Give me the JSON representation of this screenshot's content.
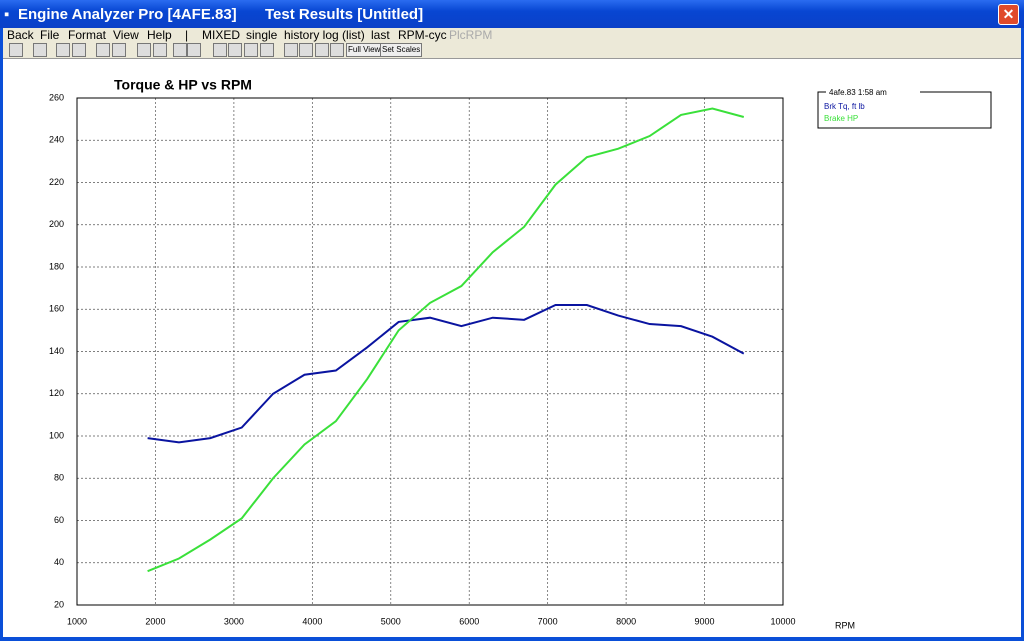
{
  "window": {
    "title": "Engine Analyzer Pro [4AFE.83]",
    "doc_title": "Test Results [Untitled]"
  },
  "menu": [
    "Back",
    "File",
    "Format",
    "View",
    "Help",
    "|",
    "MIXED",
    "single",
    "history log (list)",
    "last",
    "RPM-cyc",
    "PlcRPM"
  ],
  "toolbar": [
    "Full View",
    "Set Scales"
  ],
  "chart_data": {
    "type": "line",
    "title": "Torque & HP vs RPM",
    "x_label": "RPM",
    "legend_title": "4afe.83 1:58 am",
    "x": [
      1900,
      2300,
      2700,
      3100,
      3500,
      3900,
      4300,
      4700,
      5100,
      5500,
      5900,
      6300,
      6700,
      7100,
      7500,
      7900,
      8300,
      8700,
      9100,
      9500
    ],
    "series": [
      {
        "name": "Brk Tq, ft lb",
        "color": "#0a14a0",
        "values": [
          99,
          97,
          99,
          104,
          120,
          129,
          131,
          142,
          154,
          156,
          152,
          156,
          155,
          162,
          162,
          157,
          153,
          152,
          147,
          139
        ]
      },
      {
        "name": "Brake HP",
        "color": "#3ae03a",
        "values": [
          36,
          42,
          51,
          61,
          80,
          96,
          107,
          127,
          150,
          163,
          171,
          187,
          199,
          219,
          232,
          236,
          242,
          252,
          255,
          251
        ]
      }
    ],
    "xlim": [
      1000,
      10000
    ],
    "xticks": [
      1000,
      2000,
      3000,
      4000,
      5000,
      6000,
      7000,
      8000,
      9000,
      10000
    ],
    "ylim": [
      20,
      260
    ],
    "yticks": [
      20,
      40,
      60,
      80,
      100,
      120,
      140,
      160,
      180,
      200,
      220,
      240,
      260
    ],
    "grid": true
  }
}
